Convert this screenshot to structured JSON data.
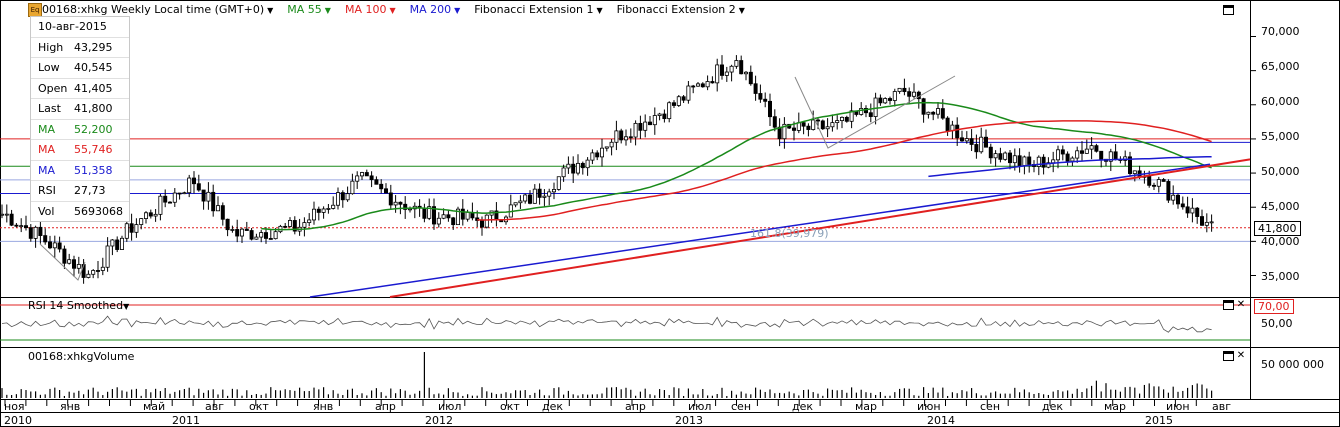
{
  "header": {
    "symbol_title": "00168:xhkg Weekly Local time (GMT+0)",
    "indicators": [
      {
        "label": "MA 55",
        "color": "#1a8a1a"
      },
      {
        "label": "MA 100",
        "color": "#e02020"
      },
      {
        "label": "MA 200",
        "color": "#1a1ad0"
      },
      {
        "label": "Fibonacci Extension 1",
        "color": "#000000"
      },
      {
        "label": "Fibonacci Extension 2",
        "color": "#000000"
      }
    ]
  },
  "info_panel": {
    "date": "10-авг-2015",
    "rows": [
      {
        "label": "High",
        "value": "43,295",
        "color": "#000000"
      },
      {
        "label": "Low",
        "value": "40,545",
        "color": "#000000"
      },
      {
        "label": "Open",
        "value": "41,405",
        "color": "#000000"
      },
      {
        "label": "Last",
        "value": "41,800",
        "color": "#000000"
      },
      {
        "label": "MA",
        "value": "52,200",
        "color": "#1a8a1a"
      },
      {
        "label": "MA",
        "value": "55,746",
        "color": "#e02020"
      },
      {
        "label": "MA",
        "value": "51,358",
        "color": "#1a1ad0"
      },
      {
        "label": "RSI",
        "value": "27,73",
        "color": "#000000"
      },
      {
        "label": "Vol",
        "value": "5693068",
        "color": "#000000"
      }
    ]
  },
  "price_axis": [
    "70,000",
    "65,000",
    "60,000",
    "55,000",
    "50,000",
    "45,000",
    "40,000",
    "35,000"
  ],
  "last_price_tag": "41,800",
  "fib_label": "161.8(39,979)",
  "rsi_pane": {
    "title": "RSI 14 Smoothed",
    "axis": [
      "50,00"
    ],
    "level_tag": "70,00"
  },
  "volume_pane": {
    "title": "00168:xhkgVolume",
    "axis": [
      "50 000 000"
    ]
  },
  "time_axis": {
    "months": [
      "ноя",
      "янв",
      "май",
      "авг",
      "окт",
      "янв",
      "апр",
      "июл",
      "окт",
      "дек",
      "апр",
      "июл",
      "сен",
      "дек",
      "мар",
      "июн",
      "сен",
      "дек",
      "мар",
      "июн",
      "авг"
    ],
    "years": [
      "2010",
      "2011",
      "2012",
      "2013",
      "2014",
      "2015"
    ]
  },
  "chart_data": {
    "type": "candlestick",
    "title": "00168:xhkg Weekly Local time (GMT+0)",
    "ylim": [
      32000,
      73000
    ],
    "approx_close_path": [
      {
        "date": "2010-11",
        "close": 44000
      },
      {
        "date": "2011-01",
        "close": 40000
      },
      {
        "date": "2011-03",
        "close": 35000
      },
      {
        "date": "2011-05",
        "close": 42000
      },
      {
        "date": "2011-08",
        "close": 49000
      },
      {
        "date": "2011-10",
        "close": 41000
      },
      {
        "date": "2012-01",
        "close": 42000
      },
      {
        "date": "2012-04",
        "close": 49000
      },
      {
        "date": "2012-07",
        "close": 44000
      },
      {
        "date": "2012-10",
        "close": 43000
      },
      {
        "date": "2012-12",
        "close": 46000
      },
      {
        "date": "2013-04",
        "close": 55000
      },
      {
        "date": "2013-07",
        "close": 60000
      },
      {
        "date": "2013-10",
        "close": 67000
      },
      {
        "date": "2013-12",
        "close": 56000
      },
      {
        "date": "2014-03",
        "close": 57000
      },
      {
        "date": "2014-06",
        "close": 62000
      },
      {
        "date": "2014-09",
        "close": 55000
      },
      {
        "date": "2014-12",
        "close": 51000
      },
      {
        "date": "2015-03",
        "close": 54000
      },
      {
        "date": "2015-06",
        "close": 49000
      },
      {
        "date": "2015-08",
        "close": 41800
      }
    ],
    "last": {
      "date": "2015-08-10",
      "open": 41405,
      "high": 43295,
      "low": 40545,
      "close": 41800
    },
    "moving_averages": [
      {
        "name": "MA 55",
        "last": 52200,
        "color": "#1a8a1a"
      },
      {
        "name": "MA 100",
        "last": 55746,
        "color": "#e02020"
      },
      {
        "name": "MA 200",
        "last": 51358,
        "color": "#1a1ad0"
      }
    ],
    "horizontal_levels": [
      {
        "value": 55000,
        "color": "#e02020"
      },
      {
        "value": 51000,
        "color": "#1a8a1a"
      },
      {
        "value": 49000,
        "color": "#9aa8e0"
      },
      {
        "value": 47000,
        "color": "#1a1ad0"
      },
      {
        "value": 40000,
        "color": "#9aa8e0"
      },
      {
        "value": 42000,
        "color": "#e02020",
        "style": "dotted"
      }
    ],
    "rsi": {
      "period": 14,
      "last": 27.73,
      "upper_level": 70,
      "lower_level": 30
    },
    "volume_last": 5693068
  }
}
